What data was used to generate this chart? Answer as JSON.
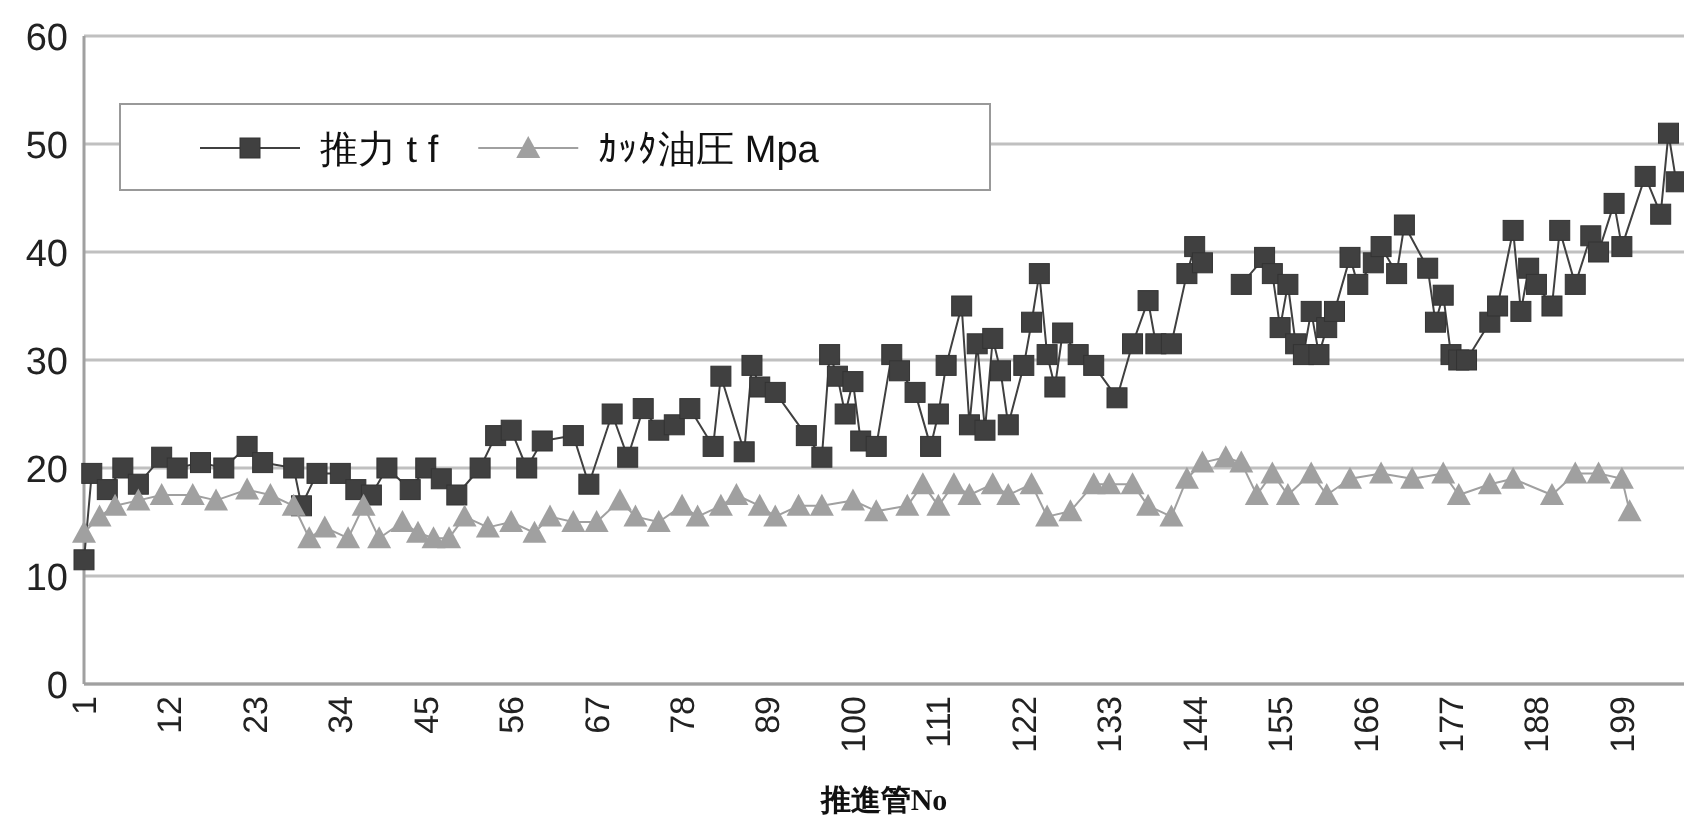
{
  "chart_data": {
    "type": "line",
    "xlabel": "推進管No",
    "xlim": [
      1,
      207
    ],
    "ylim": [
      0,
      60
    ],
    "xticks": [
      1,
      12,
      23,
      34,
      45,
      56,
      67,
      78,
      89,
      100,
      111,
      122,
      133,
      144,
      155,
      166,
      177,
      188,
      199
    ],
    "yticks": [
      0,
      10,
      20,
      30,
      40,
      50,
      60
    ],
    "grid": "y",
    "legend": "top left",
    "series": [
      {
        "name": "推力 t f",
        "color": "#404040",
        "marker": "square",
        "x": [
          1,
          2,
          4,
          6,
          8,
          11,
          13,
          16,
          19,
          22,
          24,
          28,
          29,
          31,
          34,
          36,
          38,
          40,
          43,
          45,
          47,
          49,
          52,
          54,
          56,
          58,
          60,
          64,
          66,
          69,
          71,
          73,
          75,
          77,
          79,
          82,
          83,
          86,
          87,
          88,
          90,
          94,
          96,
          97,
          98,
          99,
          100,
          101,
          103,
          105,
          106,
          108,
          110,
          111,
          112,
          114,
          115,
          116,
          117,
          118,
          119,
          120,
          122,
          123,
          124,
          125,
          126,
          127,
          129,
          131,
          134,
          136,
          138,
          139,
          141,
          143,
          144,
          145,
          146,
          150,
          153,
          154,
          155,
          156,
          157,
          158,
          159,
          160,
          161,
          162,
          164,
          165,
          167,
          168,
          170,
          171,
          174,
          175,
          176,
          177,
          178,
          179,
          182,
          183,
          185,
          186,
          187,
          188,
          190,
          191,
          193,
          195,
          196,
          198,
          199,
          202,
          204,
          205,
          206
        ],
        "values": [
          11.5,
          19.5,
          18,
          20,
          18.5,
          21,
          20,
          20.5,
          20,
          22,
          20.5,
          20,
          16.5,
          19.5,
          19.5,
          18,
          17.5,
          20,
          18,
          20,
          19,
          17.5,
          20,
          23,
          23.5,
          20,
          22.5,
          23,
          18.5,
          25,
          21,
          25.5,
          23.5,
          24,
          25.5,
          22,
          28.5,
          21.5,
          29.5,
          27.5,
          27,
          23,
          21,
          30.5,
          28.5,
          25,
          28,
          22.5,
          22,
          30.5,
          29,
          27,
          22,
          25,
          29.5,
          35,
          24,
          31.5,
          23.5,
          32,
          29,
          24,
          29.5,
          33.5,
          38,
          30.5,
          27.5,
          32.5,
          30.5,
          29.5,
          26.5,
          31.5,
          35.5,
          31.5,
          31.5,
          38,
          40.5,
          39,
          null,
          37,
          39.5,
          38,
          33,
          37,
          31.5,
          30.5,
          34.5,
          30.5,
          33,
          34.5,
          39.5,
          37,
          39,
          40.5,
          38,
          42.5,
          38.5,
          33.5,
          36,
          30.5,
          30,
          30,
          33.5,
          35,
          42,
          34.5,
          38.5,
          37,
          35,
          42,
          37,
          41.5,
          40,
          44.5,
          40.5,
          47,
          43.5,
          51,
          46.5
        ]
      },
      {
        "name": "ｶｯﾀ油圧 Mpa",
        "color": "#a0a0a0",
        "marker": "triangle",
        "x": [
          1,
          3,
          5,
          8,
          11,
          15,
          18,
          22,
          25,
          28,
          30,
          32,
          35,
          37,
          39,
          42,
          44,
          46,
          48,
          50,
          53,
          56,
          59,
          61,
          64,
          67,
          70,
          72,
          75,
          78,
          80,
          83,
          85,
          88,
          90,
          93,
          96,
          100,
          103,
          107,
          109,
          111,
          113,
          115,
          118,
          120,
          123,
          125,
          128,
          131,
          133,
          136,
          138,
          141,
          143,
          145,
          148,
          150,
          152,
          154,
          156,
          159,
          161,
          164,
          168,
          172,
          176,
          178,
          182,
          185,
          190,
          193,
          196,
          199,
          200
        ],
        "values": [
          14,
          15.5,
          16.5,
          17,
          17.5,
          17.5,
          17,
          18,
          17.5,
          16.5,
          13.5,
          14.5,
          13.5,
          16.5,
          13.5,
          15,
          14,
          13.5,
          13.5,
          15.5,
          14.5,
          15,
          14,
          15.5,
          15,
          15,
          17,
          15.5,
          15,
          16.5,
          15.5,
          16.5,
          17.5,
          16.5,
          15.5,
          16.5,
          16.5,
          17,
          16,
          16.5,
          18.5,
          16.5,
          18.5,
          17.5,
          18.5,
          17.5,
          18.5,
          15.5,
          16,
          18.5,
          18.5,
          18.5,
          16.5,
          15.5,
          19,
          20.5,
          21,
          20.5,
          17.5,
          19.5,
          17.5,
          19.5,
          17.5,
          19,
          19.5,
          19,
          19.5,
          17.5,
          18.5,
          19,
          17.5,
          19.5,
          19.5,
          19,
          16
        ]
      }
    ]
  }
}
